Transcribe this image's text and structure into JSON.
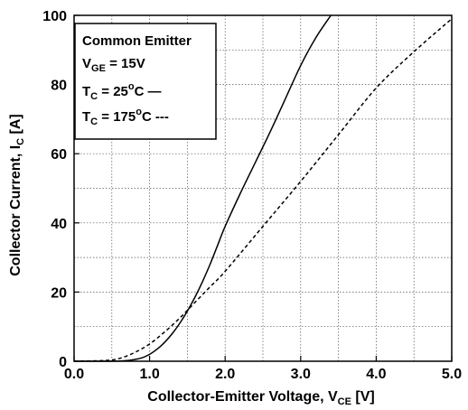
{
  "chart_data": {
    "type": "line",
    "xlabel": "Collector-Emitter Voltage, V",
    "xlabel_sub": "CE",
    "xlabel_unit": " [V]",
    "ylabel": "Collector Current, I",
    "ylabel_sub": "C",
    "ylabel_unit": " [A]",
    "xlim": [
      0,
      5
    ],
    "ylim": [
      0,
      100
    ],
    "x_ticks": [
      "0.0",
      "1.0",
      "2.0",
      "3.0",
      "4.0",
      "5.0"
    ],
    "y_ticks": [
      "0",
      "20",
      "40",
      "60",
      "80",
      "100"
    ],
    "x_tick_values": [
      0,
      1,
      2,
      3,
      4,
      5
    ],
    "y_tick_values": [
      0,
      20,
      40,
      60,
      80,
      100
    ],
    "grid": true,
    "legend": {
      "position": "top-left",
      "title": "Common Emitter",
      "condition": {
        "main": "V",
        "sub": "GE",
        "rest": " = 15V"
      }
    },
    "series": [
      {
        "name": "T",
        "name_sub": "C",
        "name_rest": " = 25",
        "name_sup": "o",
        "name_unit": "C",
        "legend_marker": "—",
        "style": "solid",
        "x": [
          0.0,
          0.5,
          0.7,
          0.8,
          0.9,
          1.0,
          1.1,
          1.2,
          1.3,
          1.4,
          1.5,
          1.6,
          1.7,
          1.8,
          1.9,
          2.0,
          2.2,
          2.4,
          2.6,
          2.8,
          3.0,
          3.2,
          3.4
        ],
        "y": [
          0,
          0,
          0.2,
          0.5,
          1,
          2,
          3.5,
          5.5,
          8,
          11,
          14.5,
          18.5,
          23,
          28,
          33.5,
          39,
          48.5,
          57.5,
          66.5,
          76,
          85.5,
          93.5,
          100
        ]
      },
      {
        "name": "T",
        "name_sub": "C",
        "name_rest": " = 175",
        "name_sup": "o",
        "name_unit": "C",
        "legend_marker": "---",
        "style": "dashed",
        "x": [
          0.0,
          0.4,
          0.6,
          0.8,
          1.0,
          1.2,
          1.4,
          1.6,
          1.8,
          2.0,
          2.5,
          3.0,
          3.5,
          4.0,
          4.5,
          5.0
        ],
        "y": [
          0,
          0.2,
          0.8,
          2.5,
          5,
          8.5,
          12.5,
          17,
          21.5,
          26,
          39,
          52,
          65.5,
          79,
          89.5,
          99
        ]
      }
    ]
  }
}
